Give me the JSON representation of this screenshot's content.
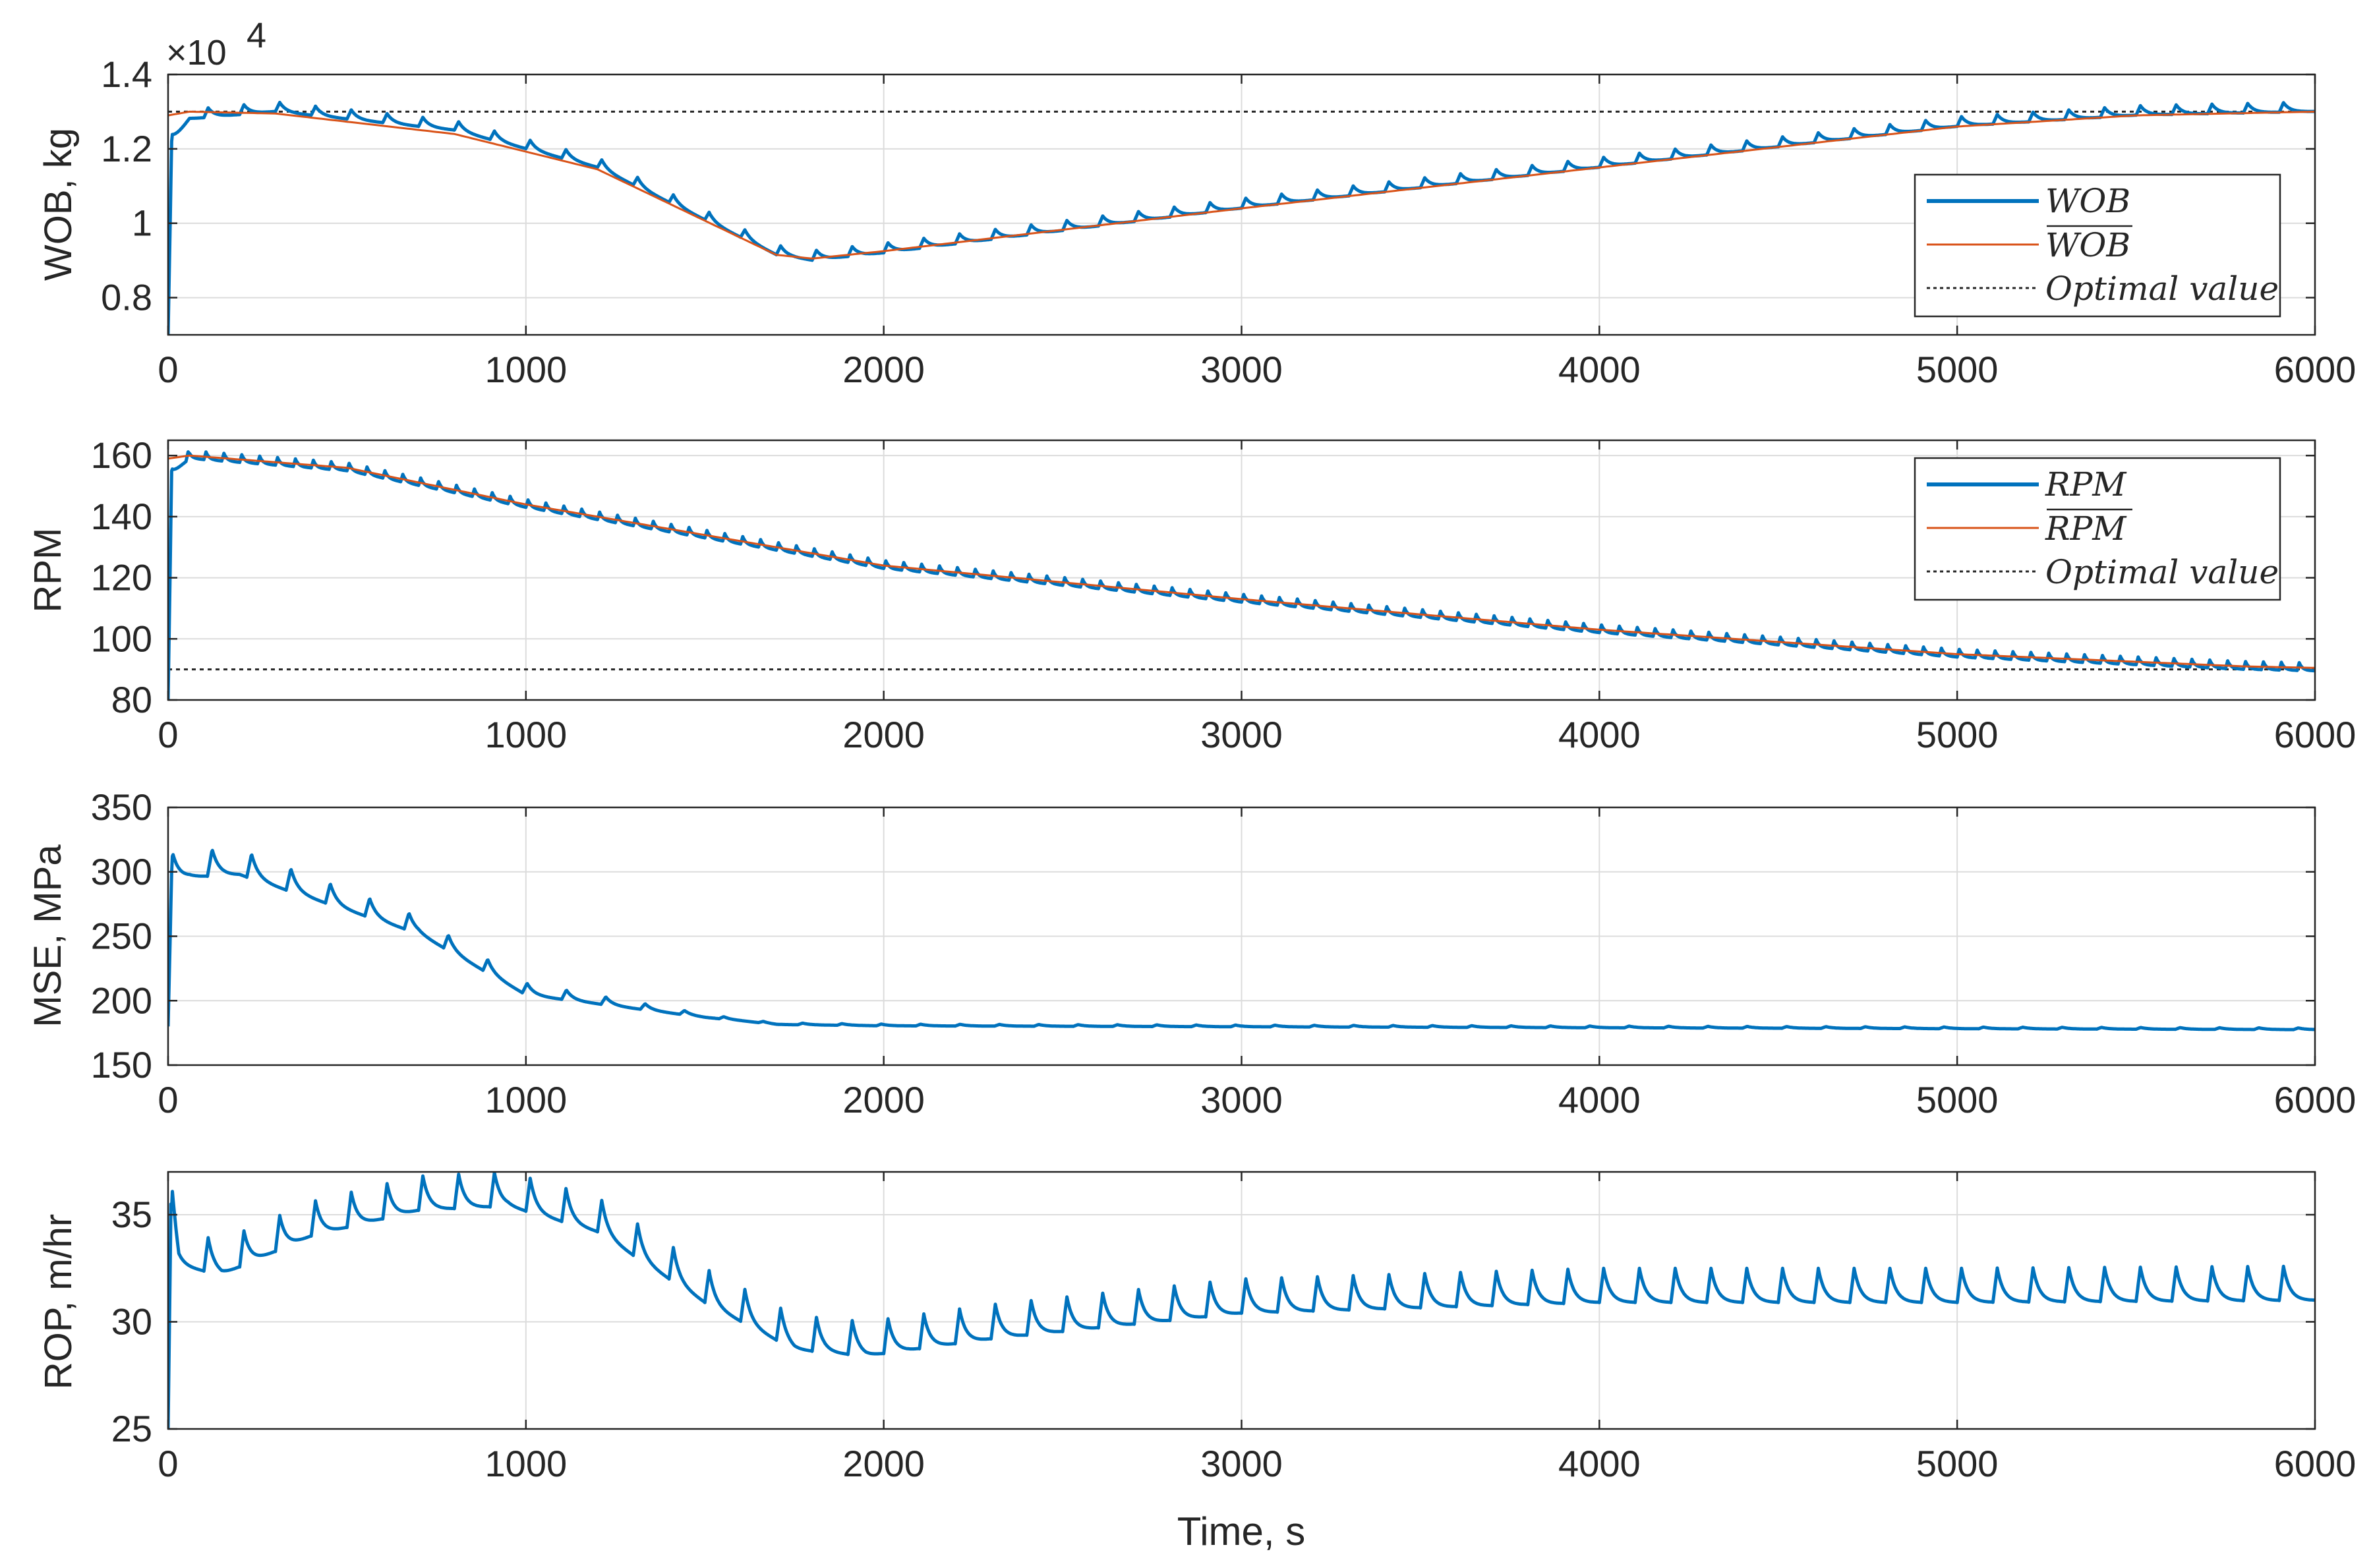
{
  "colors": {
    "series_main": "#0072bd",
    "series_avg": "#d95319",
    "optimal": "#262626",
    "axis": "#262626",
    "grid": "#dcdcdc"
  },
  "figure": {
    "xlabel": "Time, s"
  },
  "chart_data": [
    {
      "id": "wob",
      "type": "line",
      "title": "",
      "xlabel": "",
      "ylabel": "WOB, kg",
      "xlim": [
        0,
        6000
      ],
      "ylim": [
        0.7,
        1.4
      ],
      "yticks": [
        0.8,
        1,
        1.2,
        1.4
      ],
      "ytick_labels": [
        "0.8",
        "1",
        "1.2",
        "1.4"
      ],
      "xticks": [
        0,
        1000,
        2000,
        3000,
        4000,
        5000,
        6000
      ],
      "xtick_labels": [
        "0",
        "1000",
        "2000",
        "3000",
        "4000",
        "5000",
        "6000"
      ],
      "exponent_label": "×10",
      "exponent_power": "4",
      "grid": true,
      "legend_position": "bottom-right",
      "legend": [
        "WOB",
        "WOB",
        "Optimal value"
      ],
      "optimal_value": 1.3,
      "series": [
        {
          "name": "WOB",
          "style": "oscillating",
          "x": [
            0,
            10,
            60,
            300,
            800,
            1200,
            1700,
            1800,
            2000,
            3000,
            4000,
            5000,
            5500,
            6000
          ],
          "values": [
            0.7,
            1.22,
            1.29,
            1.31,
            1.26,
            1.16,
            0.925,
            0.91,
            0.93,
            1.05,
            1.16,
            1.27,
            1.3,
            1.31
          ],
          "period": 100,
          "amplitude": 0.016
        },
        {
          "name": "WOB (mean)",
          "style": "smooth",
          "x": [
            0,
            60,
            300,
            800,
            1200,
            1700,
            1800,
            2000,
            3000,
            4000,
            5000,
            5500,
            6000
          ],
          "values": [
            1.29,
            1.3,
            1.295,
            1.24,
            1.145,
            0.915,
            0.905,
            0.925,
            1.04,
            1.15,
            1.26,
            1.29,
            1.3
          ]
        }
      ]
    },
    {
      "id": "rpm",
      "type": "line",
      "title": "",
      "xlabel": "",
      "ylabel": "RPM",
      "xlim": [
        0,
        6000
      ],
      "ylim": [
        80,
        165
      ],
      "yticks": [
        80,
        100,
        120,
        140,
        160
      ],
      "ytick_labels": [
        "80",
        "100",
        "120",
        "140",
        "160"
      ],
      "xticks": [
        0,
        1000,
        2000,
        3000,
        4000,
        5000,
        6000
      ],
      "xtick_labels": [
        "0",
        "1000",
        "2000",
        "3000",
        "4000",
        "5000",
        "6000"
      ],
      "grid": true,
      "legend_position": "top-right",
      "legend": [
        "RPM",
        "RPM",
        "Optimal value"
      ],
      "optimal_value": 90,
      "series": [
        {
          "name": "RPM",
          "style": "oscillating",
          "x": [
            0,
            10,
            60,
            500,
            1000,
            2000,
            3000,
            4000,
            5000,
            5800,
            6000
          ],
          "values": [
            80,
            155,
            160,
            156,
            144,
            124,
            113,
            103,
            95,
            91,
            90.5
          ],
          "period": 50,
          "amplitude": 1.6
        },
        {
          "name": "RPM (mean)",
          "style": "smooth",
          "x": [
            0,
            60,
            500,
            1000,
            2000,
            3000,
            4000,
            5000,
            5800,
            6000
          ],
          "values": [
            159,
            160,
            156,
            144,
            124,
            113,
            103,
            95,
            91,
            90.5
          ]
        }
      ]
    },
    {
      "id": "mse",
      "type": "line",
      "title": "",
      "xlabel": "",
      "ylabel": "MSE, MPa",
      "xlim": [
        0,
        6000
      ],
      "ylim": [
        150,
        350
      ],
      "yticks": [
        150,
        200,
        250,
        300,
        350
      ],
      "ytick_labels": [
        "150",
        "200",
        "250",
        "300",
        "350"
      ],
      "xticks": [
        0,
        1000,
        2000,
        3000,
        4000,
        5000,
        6000
      ],
      "xtick_labels": [
        "0",
        "1000",
        "2000",
        "3000",
        "4000",
        "5000",
        "6000"
      ],
      "grid": true,
      "series": [
        {
          "name": "MSE",
          "style": "oscillating",
          "x": [
            0,
            10,
            60,
            200,
            700,
            1000,
            1500,
            1700,
            2000,
            6000
          ],
          "values": [
            180,
            300,
            304,
            305,
            257,
            208,
            188,
            182,
            181,
            178
          ],
          "period": 110,
          "amplitude": 14,
          "decay_end": 1700
        }
      ]
    },
    {
      "id": "rop",
      "type": "line",
      "title": "",
      "xlabel": "Time, s",
      "ylabel": "ROP, m/hr",
      "xlim": [
        0,
        6000
      ],
      "ylim": [
        25,
        37
      ],
      "yticks": [
        25,
        30,
        35
      ],
      "ytick_labels": [
        "25",
        "30",
        "35"
      ],
      "xticks": [
        0,
        1000,
        2000,
        3000,
        4000,
        5000,
        6000
      ],
      "xtick_labels": [
        "0",
        "1000",
        "2000",
        "3000",
        "4000",
        "5000",
        "6000"
      ],
      "grid": true,
      "series": [
        {
          "name": "ROP",
          "style": "oscillating",
          "x": [
            0,
            8,
            30,
            150,
            400,
            700,
            950,
            1200,
            1500,
            1750,
            1950,
            2300,
            3000,
            4000,
            5000,
            6000
          ],
          "values": [
            25,
            35.5,
            33.2,
            32.8,
            34.6,
            35.8,
            36.0,
            34.8,
            31.5,
            29.3,
            29.0,
            29.8,
            31.0,
            31.5,
            31.5,
            31.6
          ],
          "period": 100,
          "amplitude": 1.0
        }
      ]
    }
  ]
}
